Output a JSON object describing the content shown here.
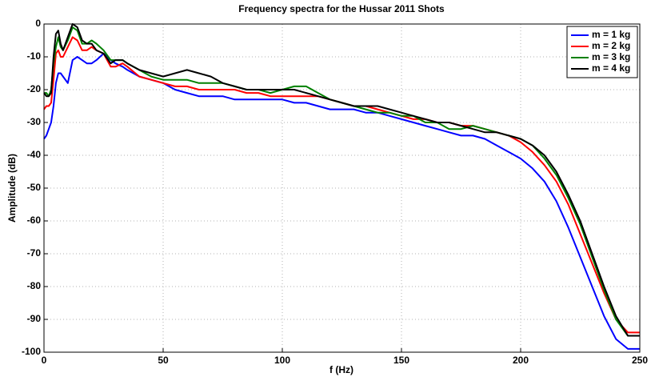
{
  "chart_data": {
    "type": "line",
    "title": "Frequency spectra for the Hussar 2011 Shots",
    "xlabel": "f (Hz)",
    "ylabel": "Amplitude (dB)",
    "x": [
      0,
      1,
      2,
      3,
      4,
      5,
      6,
      7,
      8,
      10,
      12,
      14,
      16,
      18,
      20,
      22,
      25,
      28,
      30,
      33,
      35,
      40,
      45,
      50,
      55,
      60,
      65,
      70,
      75,
      80,
      85,
      90,
      95,
      100,
      105,
      110,
      115,
      120,
      125,
      130,
      135,
      140,
      145,
      150,
      155,
      160,
      165,
      170,
      175,
      180,
      185,
      190,
      195,
      200,
      205,
      210,
      215,
      220,
      225,
      230,
      235,
      240,
      245,
      250
    ],
    "series": [
      {
        "name": "m = 1 kg",
        "color": "#0000ff",
        "values": [
          -35,
          -34,
          -32,
          -30,
          -25,
          -18,
          -15,
          -15,
          -16,
          -18,
          -11,
          -10,
          -11,
          -12,
          -12,
          -11,
          -9,
          -11,
          -12,
          -13,
          -14,
          -16,
          -17,
          -18,
          -20,
          -21,
          -22,
          -22,
          -22,
          -23,
          -23,
          -23,
          -23,
          -23,
          -24,
          -24,
          -25,
          -26,
          -26,
          -26,
          -27,
          -27,
          -28,
          -29,
          -30,
          -31,
          -32,
          -33,
          -34,
          -34,
          -35,
          -37,
          -39,
          -41,
          -44,
          -48,
          -54,
          -62,
          -71,
          -80,
          -89,
          -96,
          -99,
          -99
        ]
      },
      {
        "name": "m = 2 kg",
        "color": "#ff0000",
        "values": [
          -26,
          -25,
          -25,
          -24,
          -17,
          -9,
          -8,
          -10,
          -10,
          -7,
          -4,
          -5,
          -8,
          -8,
          -7,
          -8,
          -9,
          -13,
          -13,
          -12,
          -13,
          -16,
          -17,
          -18,
          -19,
          -19,
          -20,
          -20,
          -20,
          -20,
          -21,
          -21,
          -22,
          -22,
          -22,
          -22,
          -22,
          -23,
          -24,
          -25,
          -25,
          -26,
          -27,
          -28,
          -29,
          -29,
          -30,
          -30,
          -31,
          -31,
          -32,
          -33,
          -34,
          -36,
          -39,
          -43,
          -48,
          -55,
          -64,
          -73,
          -82,
          -90,
          -94,
          -94
        ]
      },
      {
        "name": "m = 3 kg",
        "color": "#008000",
        "values": [
          -21,
          -21,
          -22,
          -20,
          -12,
          -7,
          -4,
          -7,
          -8,
          -5,
          -1,
          -2,
          -6,
          -6,
          -5,
          -6,
          -8,
          -11,
          -11,
          -11,
          -12,
          -14,
          -16,
          -17,
          -17,
          -17,
          -18,
          -18,
          -18,
          -19,
          -20,
          -20,
          -21,
          -20,
          -19,
          -19,
          -21,
          -23,
          -24,
          -25,
          -26,
          -27,
          -27,
          -28,
          -28,
          -30,
          -30,
          -32,
          -32,
          -31,
          -32,
          -33,
          -34,
          -35,
          -37,
          -41,
          -46,
          -53,
          -61,
          -71,
          -81,
          -90,
          -95,
          -95
        ]
      },
      {
        "name": "m = 4 kg",
        "color": "#000000",
        "values": [
          -21,
          -22,
          -22,
          -21,
          -10,
          -3,
          -2,
          -6,
          -8,
          -4,
          0,
          -1,
          -5,
          -6,
          -6,
          -8,
          -9,
          -12,
          -11,
          -11,
          -12,
          -14,
          -15,
          -16,
          -15,
          -14,
          -15,
          -16,
          -18,
          -19,
          -20,
          -20,
          -20,
          -20,
          -20,
          -21,
          -22,
          -23,
          -24,
          -25,
          -25,
          -25,
          -26,
          -27,
          -28,
          -29,
          -30,
          -30,
          -31,
          -32,
          -33,
          -33,
          -34,
          -35,
          -37,
          -40,
          -45,
          -52,
          -60,
          -70,
          -80,
          -89,
          -95,
          -95
        ]
      }
    ],
    "xlim": [
      0,
      250
    ],
    "xticks": [
      0,
      50,
      100,
      150,
      200,
      250
    ],
    "ylim": [
      -100,
      0
    ],
    "yticks": [
      -100,
      -90,
      -80,
      -70,
      -60,
      -50,
      -40,
      -30,
      -20,
      -10,
      0
    ],
    "grid": true,
    "legend": "upper right"
  }
}
